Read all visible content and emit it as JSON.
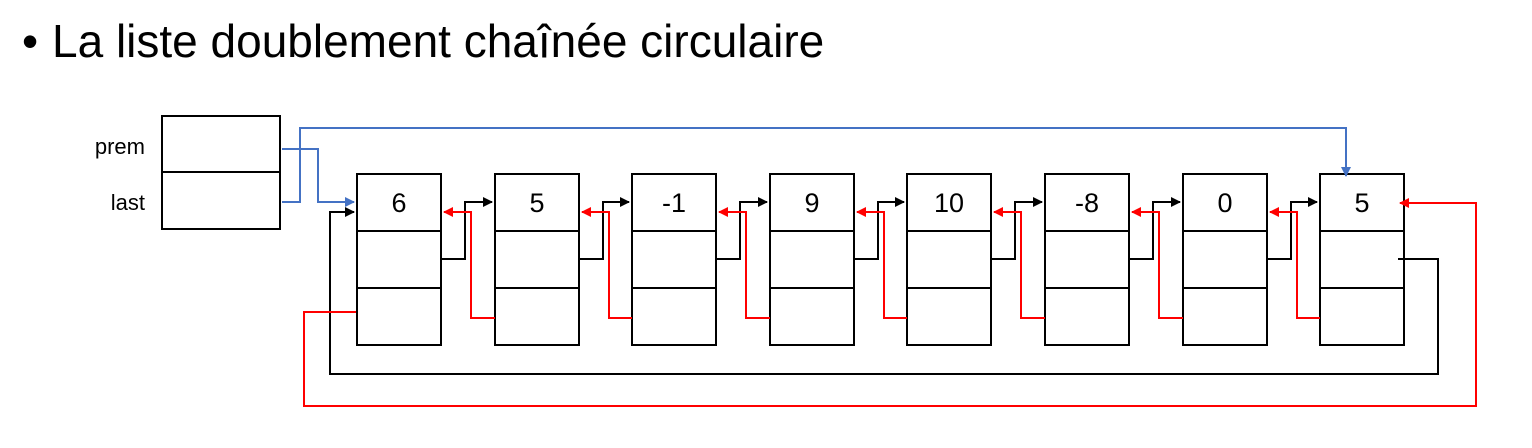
{
  "title": {
    "bullet": "•",
    "text": "La liste doublement chaînée circulaire"
  },
  "header": {
    "prem_label": "prem",
    "last_label": "last"
  },
  "nodes": [
    {
      "value": "6"
    },
    {
      "value": "5"
    },
    {
      "value": "-1"
    },
    {
      "value": "9"
    },
    {
      "value": "10"
    },
    {
      "value": "-8"
    },
    {
      "value": "0"
    },
    {
      "value": "5"
    }
  ],
  "colors": {
    "outline": "#000000",
    "next_link": "#000000",
    "prev_link": "#ff0000",
    "header_link": "#4472c4"
  }
}
